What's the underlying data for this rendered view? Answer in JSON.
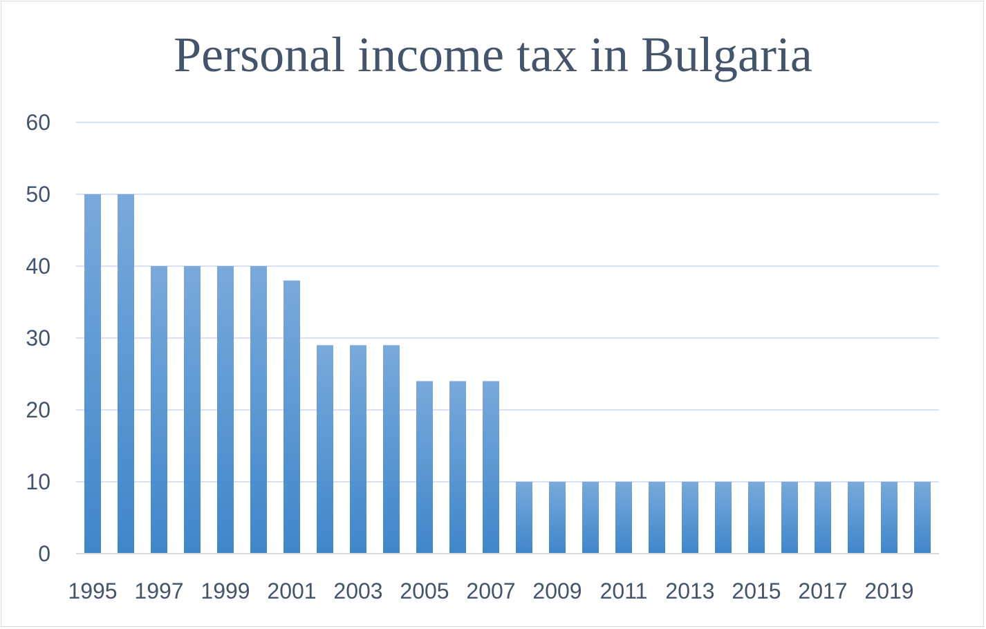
{
  "chart_data": {
    "type": "bar",
    "title": "Personal income tax in Bulgaria",
    "xlabel": "",
    "ylabel": "",
    "categories": [
      "1995",
      "1996",
      "1997",
      "1998",
      "1999",
      "2000",
      "2001",
      "2002",
      "2003",
      "2004",
      "2005",
      "2006",
      "2007",
      "2008",
      "2009",
      "2010",
      "2011",
      "2012",
      "2013",
      "2014",
      "2015",
      "2016",
      "2017",
      "2018",
      "2019",
      "2020"
    ],
    "x_tick_labels": [
      "1995",
      "1997",
      "1999",
      "2001",
      "2003",
      "2005",
      "2007",
      "2009",
      "2011",
      "2013",
      "2015",
      "2017",
      "2019"
    ],
    "values": [
      50,
      50,
      40,
      40,
      40,
      40,
      38,
      29,
      29,
      29,
      24,
      24,
      24,
      10,
      10,
      10,
      10,
      10,
      10,
      10,
      10,
      10,
      10,
      10,
      10,
      10
    ],
    "ylim": [
      0,
      60
    ],
    "y_ticks": [
      0,
      10,
      20,
      30,
      40,
      50,
      60
    ],
    "grid": true,
    "legend": "none",
    "colors": {
      "bar_top": "#7aa9dc",
      "bar_bottom": "#3f86c9",
      "grid": "#d9e1ee",
      "axis": "#d9d9d9",
      "text": "#44546a"
    }
  }
}
